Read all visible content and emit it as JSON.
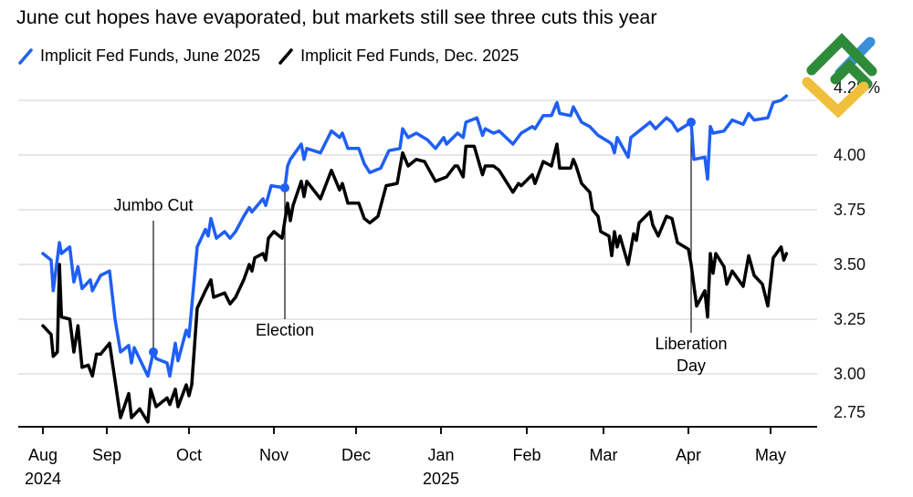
{
  "chart_data": {
    "type": "line",
    "title": "June cut hopes have evaporated, but markets still see three cuts this year",
    "ylabel": "",
    "xlabel": "",
    "ylim": [
      2.75,
      4.25
    ],
    "yticks": [
      {
        "value": 4.25,
        "label": "4.25%"
      },
      {
        "value": 4.0,
        "label": "4.00"
      },
      {
        "value": 3.75,
        "label": "3.75"
      },
      {
        "value": 3.5,
        "label": "3.50"
      },
      {
        "value": 3.25,
        "label": "3.25"
      },
      {
        "value": 3.0,
        "label": "3.00"
      },
      {
        "value": 2.75,
        "label": "2.75"
      }
    ],
    "xticks": [
      {
        "date": "2024-08-01",
        "label": "Aug",
        "sublabel": "2024"
      },
      {
        "date": "2024-09-01",
        "label": "Sep"
      },
      {
        "date": "2024-10-01",
        "label": "Oct"
      },
      {
        "date": "2024-11-01",
        "label": "Nov"
      },
      {
        "date": "2024-12-01",
        "label": "Dec"
      },
      {
        "date": "2025-01-01",
        "label": "Jan",
        "sublabel": "2025"
      },
      {
        "date": "2025-02-01",
        "label": "Feb"
      },
      {
        "date": "2025-03-01",
        "label": "Mar"
      },
      {
        "date": "2025-04-01",
        "label": "Apr"
      },
      {
        "date": "2025-05-01",
        "label": "May"
      }
    ],
    "grid": true,
    "legend_placement": "top-left",
    "series": [
      {
        "name": "Implicit Fed Funds, June 2025",
        "color": "#1f5ff5",
        "points": [
          [
            "2024-08-01",
            3.55
          ],
          [
            "2024-08-05",
            3.52
          ],
          [
            "2024-08-06",
            3.38
          ],
          [
            "2024-08-09",
            3.6
          ],
          [
            "2024-08-10",
            3.55
          ],
          [
            "2024-08-14",
            3.58
          ],
          [
            "2024-08-16",
            3.42
          ],
          [
            "2024-08-18",
            3.49
          ],
          [
            "2024-08-20",
            3.39
          ],
          [
            "2024-08-24",
            3.43
          ],
          [
            "2024-08-25",
            3.38
          ],
          [
            "2024-08-29",
            3.45
          ],
          [
            "2024-09-02",
            3.47
          ],
          [
            "2024-09-04",
            3.25
          ],
          [
            "2024-09-06",
            3.1
          ],
          [
            "2024-09-09",
            3.13
          ],
          [
            "2024-09-10",
            3.05
          ],
          [
            "2024-09-11",
            3.12
          ],
          [
            "2024-09-16",
            2.99
          ],
          [
            "2024-09-18",
            3.1
          ],
          [
            "2024-09-19",
            3.07
          ],
          [
            "2024-09-23",
            3.05
          ],
          [
            "2024-09-24",
            2.99
          ],
          [
            "2024-09-26",
            3.14
          ],
          [
            "2024-09-27",
            3.06
          ],
          [
            "2024-09-30",
            3.2
          ],
          [
            "2024-10-01",
            3.17
          ],
          [
            "2024-10-04",
            3.58
          ],
          [
            "2024-10-07",
            3.66
          ],
          [
            "2024-10-08",
            3.63
          ],
          [
            "2024-10-09",
            3.71
          ],
          [
            "2024-10-11",
            3.62
          ],
          [
            "2024-10-14",
            3.65
          ],
          [
            "2024-10-16",
            3.62
          ],
          [
            "2024-10-18",
            3.65
          ],
          [
            "2024-10-21",
            3.72
          ],
          [
            "2024-10-23",
            3.76
          ],
          [
            "2024-10-24",
            3.74
          ],
          [
            "2024-10-28",
            3.8
          ],
          [
            "2024-10-29",
            3.77
          ],
          [
            "2024-10-31",
            3.86
          ],
          [
            "2024-11-05",
            3.85
          ],
          [
            "2024-11-06",
            3.95
          ],
          [
            "2024-11-07",
            3.98
          ],
          [
            "2024-11-11",
            4.05
          ],
          [
            "2024-11-12",
            3.98
          ],
          [
            "2024-11-13",
            4.03
          ],
          [
            "2024-11-18",
            4.01
          ],
          [
            "2024-11-22",
            4.11
          ],
          [
            "2024-11-25",
            4.08
          ],
          [
            "2024-11-26",
            4.1
          ],
          [
            "2024-11-28",
            4.03
          ],
          [
            "2024-12-02",
            4.03
          ],
          [
            "2024-12-04",
            3.96
          ],
          [
            "2024-12-06",
            3.92
          ],
          [
            "2024-12-10",
            3.94
          ],
          [
            "2024-12-13",
            4.02
          ],
          [
            "2024-12-17",
            4.03
          ],
          [
            "2024-12-18",
            4.12
          ],
          [
            "2024-12-20",
            4.08
          ],
          [
            "2024-12-23",
            4.1
          ],
          [
            "2024-12-27",
            4.07
          ],
          [
            "2024-12-30",
            4.03
          ],
          [
            "2025-01-02",
            4.08
          ],
          [
            "2025-01-03",
            4.05
          ],
          [
            "2025-01-07",
            4.1
          ],
          [
            "2025-01-09",
            4.08
          ],
          [
            "2025-01-10",
            4.15
          ],
          [
            "2025-01-14",
            4.17
          ],
          [
            "2025-01-16",
            4.09
          ],
          [
            "2025-01-17",
            4.12
          ],
          [
            "2025-01-20",
            4.1
          ],
          [
            "2025-01-22",
            4.11
          ],
          [
            "2025-01-27",
            4.05
          ],
          [
            "2025-01-30",
            4.1
          ],
          [
            "2025-02-03",
            4.13
          ],
          [
            "2025-02-04",
            4.12
          ],
          [
            "2025-02-07",
            4.18
          ],
          [
            "2025-02-10",
            4.18
          ],
          [
            "2025-02-12",
            4.24
          ],
          [
            "2025-02-13",
            4.19
          ],
          [
            "2025-02-17",
            4.18
          ],
          [
            "2025-02-18",
            4.22
          ],
          [
            "2025-02-21",
            4.15
          ],
          [
            "2025-02-24",
            4.13
          ],
          [
            "2025-02-27",
            4.09
          ],
          [
            "2025-03-03",
            4.06
          ],
          [
            "2025-03-04",
            4.05
          ],
          [
            "2025-03-05",
            4.01
          ],
          [
            "2025-03-06",
            4.08
          ],
          [
            "2025-03-10",
            3.99
          ],
          [
            "2025-03-11",
            4.08
          ],
          [
            "2025-03-14",
            4.11
          ],
          [
            "2025-03-18",
            4.15
          ],
          [
            "2025-03-20",
            4.12
          ],
          [
            "2025-03-24",
            4.17
          ],
          [
            "2025-03-26",
            4.15
          ],
          [
            "2025-03-28",
            4.11
          ],
          [
            "2025-04-02",
            4.15
          ],
          [
            "2025-04-03",
            3.98
          ],
          [
            "2025-04-07",
            3.99
          ],
          [
            "2025-04-08",
            3.89
          ],
          [
            "2025-04-09",
            4.13
          ],
          [
            "2025-04-10",
            4.1
          ],
          [
            "2025-04-14",
            4.11
          ],
          [
            "2025-04-17",
            4.16
          ],
          [
            "2025-04-21",
            4.14
          ],
          [
            "2025-04-23",
            4.19
          ],
          [
            "2025-04-25",
            4.16
          ],
          [
            "2025-04-30",
            4.17
          ],
          [
            "2025-05-02",
            4.24
          ],
          [
            "2025-05-05",
            4.25
          ],
          [
            "2025-05-07",
            4.27
          ]
        ]
      },
      {
        "name": "Implicit Fed Funds, Dec. 2025",
        "color": "#000000",
        "points": [
          [
            "2024-08-01",
            3.22
          ],
          [
            "2024-08-05",
            3.18
          ],
          [
            "2024-08-06",
            3.08
          ],
          [
            "2024-08-08",
            3.1
          ],
          [
            "2024-08-09",
            3.5
          ],
          [
            "2024-08-10",
            3.26
          ],
          [
            "2024-08-14",
            3.25
          ],
          [
            "2024-08-16",
            3.1
          ],
          [
            "2024-08-18",
            3.22
          ],
          [
            "2024-08-20",
            3.03
          ],
          [
            "2024-08-23",
            3.04
          ],
          [
            "2024-08-25",
            2.99
          ],
          [
            "2024-08-27",
            3.09
          ],
          [
            "2024-08-29",
            3.09
          ],
          [
            "2024-09-02",
            3.14
          ],
          [
            "2024-09-06",
            2.8
          ],
          [
            "2024-09-09",
            2.91
          ],
          [
            "2024-09-10",
            2.8
          ],
          [
            "2024-09-13",
            2.84
          ],
          [
            "2024-09-16",
            2.78
          ],
          [
            "2024-09-17",
            2.93
          ],
          [
            "2024-09-19",
            2.85
          ],
          [
            "2024-09-23",
            2.89
          ],
          [
            "2024-09-24",
            2.86
          ],
          [
            "2024-09-26",
            2.93
          ],
          [
            "2024-09-27",
            2.85
          ],
          [
            "2024-09-30",
            2.95
          ],
          [
            "2024-10-01",
            2.9
          ],
          [
            "2024-10-02",
            2.95
          ],
          [
            "2024-10-04",
            3.3
          ],
          [
            "2024-10-07",
            3.38
          ],
          [
            "2024-10-09",
            3.43
          ],
          [
            "2024-10-10",
            3.35
          ],
          [
            "2024-10-14",
            3.37
          ],
          [
            "2024-10-16",
            3.32
          ],
          [
            "2024-10-18",
            3.35
          ],
          [
            "2024-10-21",
            3.43
          ],
          [
            "2024-10-23",
            3.5
          ],
          [
            "2024-10-24",
            3.47
          ],
          [
            "2024-10-25",
            3.53
          ],
          [
            "2024-10-28",
            3.55
          ],
          [
            "2024-10-29",
            3.52
          ],
          [
            "2024-10-30",
            3.62
          ],
          [
            "2024-11-01",
            3.65
          ],
          [
            "2024-11-04",
            3.62
          ],
          [
            "2024-11-06",
            3.78
          ],
          [
            "2024-11-07",
            3.7
          ],
          [
            "2024-11-08",
            3.77
          ],
          [
            "2024-11-11",
            3.88
          ],
          [
            "2024-11-12",
            3.81
          ],
          [
            "2024-11-13",
            3.88
          ],
          [
            "2024-11-18",
            3.8
          ],
          [
            "2024-11-22",
            3.93
          ],
          [
            "2024-11-25",
            3.84
          ],
          [
            "2024-11-26",
            3.87
          ],
          [
            "2024-11-28",
            3.78
          ],
          [
            "2024-12-02",
            3.78
          ],
          [
            "2024-12-04",
            3.71
          ],
          [
            "2024-12-06",
            3.69
          ],
          [
            "2024-12-09",
            3.72
          ],
          [
            "2024-12-12",
            3.86
          ],
          [
            "2024-12-16",
            3.87
          ],
          [
            "2024-12-18",
            4.01
          ],
          [
            "2024-12-20",
            3.95
          ],
          [
            "2024-12-23",
            3.98
          ],
          [
            "2024-12-26",
            3.97
          ],
          [
            "2024-12-30",
            3.88
          ],
          [
            "2025-01-03",
            3.9
          ],
          [
            "2025-01-06",
            3.95
          ],
          [
            "2025-01-07",
            3.95
          ],
          [
            "2025-01-09",
            3.9
          ],
          [
            "2025-01-10",
            4.04
          ],
          [
            "2025-01-13",
            4.04
          ],
          [
            "2025-01-16",
            3.91
          ],
          [
            "2025-01-17",
            3.95
          ],
          [
            "2025-01-20",
            3.95
          ],
          [
            "2025-01-22",
            3.93
          ],
          [
            "2025-01-27",
            3.83
          ],
          [
            "2025-01-29",
            3.87
          ],
          [
            "2025-01-30",
            3.86
          ],
          [
            "2025-02-03",
            3.91
          ],
          [
            "2025-02-04",
            3.87
          ],
          [
            "2025-02-07",
            3.97
          ],
          [
            "2025-02-10",
            3.95
          ],
          [
            "2025-02-12",
            4.05
          ],
          [
            "2025-02-13",
            3.94
          ],
          [
            "2025-02-17",
            3.94
          ],
          [
            "2025-02-18",
            3.98
          ],
          [
            "2025-02-19",
            3.95
          ],
          [
            "2025-02-21",
            3.87
          ],
          [
            "2025-02-24",
            3.83
          ],
          [
            "2025-02-25",
            3.75
          ],
          [
            "2025-02-27",
            3.72
          ],
          [
            "2025-02-28",
            3.65
          ],
          [
            "2025-03-03",
            3.63
          ],
          [
            "2025-03-04",
            3.54
          ],
          [
            "2025-03-05",
            3.65
          ],
          [
            "2025-03-06",
            3.58
          ],
          [
            "2025-03-07",
            3.63
          ],
          [
            "2025-03-10",
            3.5
          ],
          [
            "2025-03-12",
            3.64
          ],
          [
            "2025-03-13",
            3.61
          ],
          [
            "2025-03-14",
            3.69
          ],
          [
            "2025-03-18",
            3.74
          ],
          [
            "2025-03-19",
            3.68
          ],
          [
            "2025-03-21",
            3.63
          ],
          [
            "2025-03-24",
            3.72
          ],
          [
            "2025-03-26",
            3.71
          ],
          [
            "2025-03-28",
            3.6
          ],
          [
            "2025-04-01",
            3.57
          ],
          [
            "2025-04-02",
            3.5
          ],
          [
            "2025-04-04",
            3.31
          ],
          [
            "2025-04-07",
            3.38
          ],
          [
            "2025-04-08",
            3.26
          ],
          [
            "2025-04-09",
            3.55
          ],
          [
            "2025-04-10",
            3.46
          ],
          [
            "2025-04-11",
            3.55
          ],
          [
            "2025-04-14",
            3.49
          ],
          [
            "2025-04-15",
            3.41
          ],
          [
            "2025-04-17",
            3.47
          ],
          [
            "2025-04-21",
            3.4
          ],
          [
            "2025-04-23",
            3.54
          ],
          [
            "2025-04-25",
            3.45
          ],
          [
            "2025-04-28",
            3.41
          ],
          [
            "2025-04-30",
            3.31
          ],
          [
            "2025-05-02",
            3.53
          ],
          [
            "2025-05-05",
            3.58
          ],
          [
            "2025-05-06",
            3.52
          ],
          [
            "2025-05-07",
            3.55
          ]
        ]
      }
    ],
    "annotations": [
      {
        "label": "Jumbo Cut",
        "date": "2024-09-18",
        "value": 3.1,
        "position": "above"
      },
      {
        "label": "Election",
        "date": "2024-11-05",
        "value": 3.85,
        "position": "below"
      },
      {
        "label": "Liberation Day",
        "date": "2025-04-02",
        "value": 4.15,
        "position": "below"
      }
    ]
  },
  "logo": {
    "colors": [
      "#2e8b3a",
      "#f0c03c",
      "#3a8fd9"
    ]
  }
}
